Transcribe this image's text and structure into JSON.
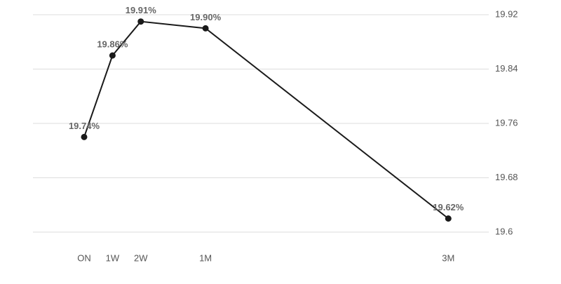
{
  "chart_data": {
    "type": "line",
    "x": [
      0,
      7,
      14,
      30,
      90
    ],
    "xticks": [
      {
        "value": 0,
        "label": "ON"
      },
      {
        "value": 7,
        "label": "1W"
      },
      {
        "value": 14,
        "label": "2W"
      },
      {
        "value": 30,
        "label": "1M"
      },
      {
        "value": 90,
        "label": "3M"
      }
    ],
    "xlim": [
      -12.65,
      100
    ],
    "series": [
      {
        "color": "#1a1a1a",
        "values": [
          19.74,
          19.86,
          19.91,
          19.9,
          19.62
        ],
        "value_labels": [
          "19.74%",
          "19.86%",
          "19.91%",
          "19.90%",
          "19.62%"
        ]
      }
    ],
    "ylim": [
      19.6,
      19.92
    ],
    "yticks": [
      19.92,
      19.84,
      19.76,
      19.68,
      19.6
    ],
    "grid": true
  }
}
